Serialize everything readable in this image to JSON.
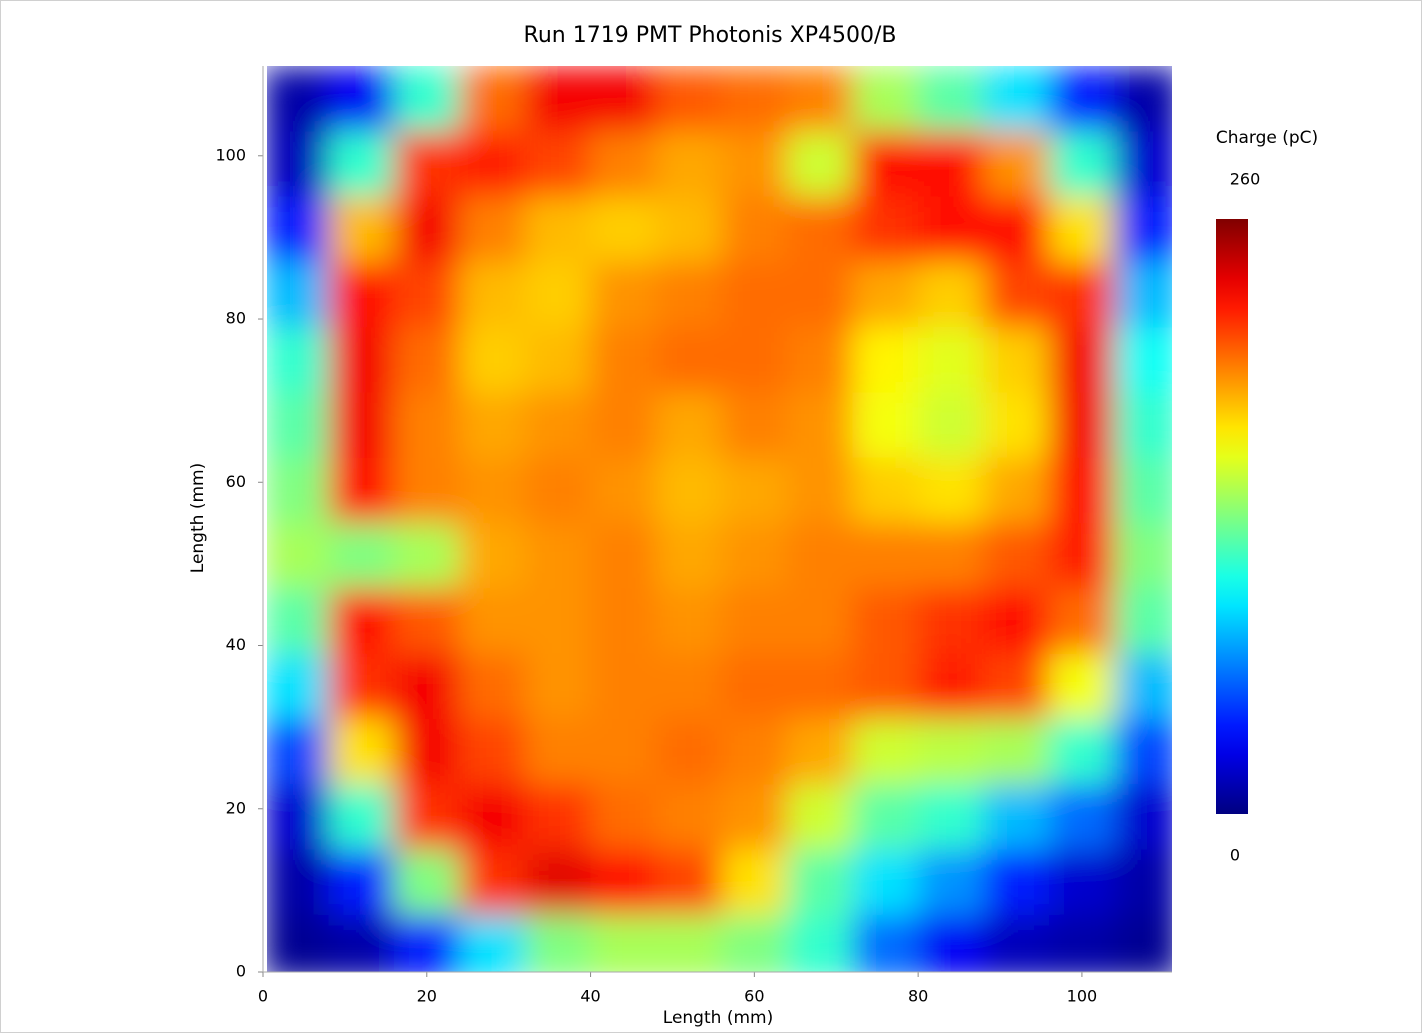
{
  "chart_data": {
    "type": "heatmap",
    "title": "Run 1719 PMT Photonis XP4500/B",
    "x_label": "Length (mm)",
    "y_label": "Length (mm)",
    "colorbar_label": "Charge (pC)",
    "xlim": [
      0,
      111
    ],
    "ylim": [
      0,
      111
    ],
    "xticks": [
      0,
      20,
      40,
      60,
      80,
      100
    ],
    "yticks": [
      0,
      20,
      40,
      60,
      80,
      100
    ],
    "clim": [
      0,
      260
    ],
    "cticks": [
      260,
      0
    ],
    "colormap": "jet",
    "x": [
      4,
      12,
      20,
      28,
      36,
      44,
      52,
      60,
      68,
      76,
      84,
      92,
      100,
      108
    ],
    "y": [
      107,
      99,
      91,
      83,
      75,
      67,
      59,
      51,
      43,
      35,
      27,
      19,
      11,
      3
    ],
    "values": [
      [
        10,
        30,
        110,
        200,
        230,
        230,
        205,
        200,
        195,
        140,
        120,
        90,
        40,
        10
      ],
      [
        15,
        110,
        215,
        220,
        210,
        195,
        185,
        190,
        150,
        225,
        225,
        190,
        110,
        20
      ],
      [
        40,
        180,
        230,
        195,
        180,
        175,
        180,
        195,
        200,
        215,
        225,
        225,
        170,
        40
      ],
      [
        80,
        225,
        210,
        180,
        175,
        190,
        195,
        200,
        200,
        185,
        175,
        210,
        215,
        80
      ],
      [
        110,
        230,
        200,
        175,
        180,
        195,
        200,
        200,
        195,
        165,
        155,
        175,
        230,
        100
      ],
      [
        120,
        230,
        195,
        185,
        190,
        195,
        185,
        195,
        190,
        160,
        150,
        170,
        230,
        110
      ],
      [
        130,
        225,
        195,
        190,
        195,
        190,
        180,
        185,
        190,
        175,
        170,
        185,
        225,
        120
      ],
      [
        140,
        130,
        140,
        185,
        190,
        195,
        185,
        190,
        195,
        195,
        195,
        205,
        220,
        130
      ],
      [
        120,
        225,
        205,
        190,
        190,
        195,
        190,
        195,
        195,
        205,
        215,
        225,
        200,
        120
      ],
      [
        90,
        215,
        230,
        200,
        190,
        195,
        195,
        200,
        200,
        205,
        220,
        210,
        160,
        80
      ],
      [
        50,
        170,
        230,
        210,
        195,
        195,
        200,
        195,
        185,
        150,
        145,
        140,
        110,
        50
      ],
      [
        20,
        110,
        215,
        230,
        215,
        200,
        195,
        190,
        150,
        120,
        110,
        80,
        60,
        20
      ],
      [
        10,
        40,
        130,
        215,
        235,
        225,
        210,
        170,
        120,
        90,
        70,
        40,
        20,
        10
      ],
      [
        5,
        10,
        40,
        90,
        130,
        140,
        140,
        130,
        110,
        60,
        30,
        15,
        10,
        5
      ]
    ]
  }
}
